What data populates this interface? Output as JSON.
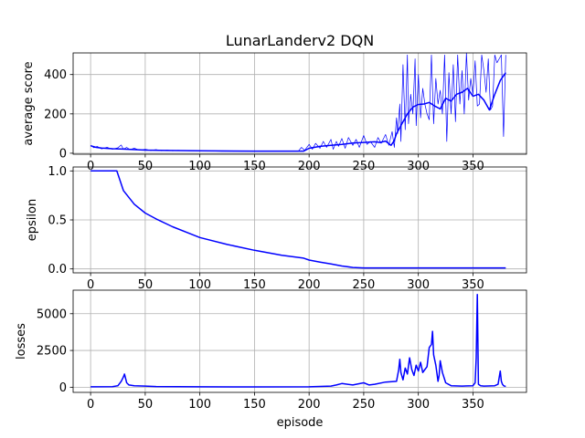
{
  "chart_data": [
    {
      "type": "line",
      "title": "LunarLanderv2 DQN",
      "xlabel": "",
      "ylabel": "average score",
      "xlim": [
        -16,
        399
      ],
      "ylim": [
        -5,
        510
      ],
      "xticks": [
        0,
        50,
        100,
        150,
        200,
        250,
        300,
        350
      ],
      "yticks": [
        0,
        200,
        400
      ],
      "grid": true,
      "series": [
        {
          "style": "thin",
          "color": "#0000ff",
          "x": [
            0,
            3,
            6,
            10,
            15,
            20,
            25,
            28,
            30,
            33,
            36,
            40,
            45,
            50,
            55,
            60,
            65,
            70,
            75,
            80,
            90,
            100,
            120,
            150,
            190,
            193,
            196,
            200,
            203,
            206,
            210,
            213,
            216,
            220,
            222,
            225,
            227,
            230,
            233,
            236,
            240,
            243,
            246,
            250,
            253,
            256,
            260,
            263,
            266,
            270,
            273,
            276,
            278,
            280,
            281,
            283,
            284,
            286,
            288,
            290,
            291,
            293,
            295,
            297,
            298,
            300,
            302,
            304,
            306,
            308,
            310,
            312,
            314,
            316,
            318,
            320,
            322,
            324,
            326,
            328,
            330,
            332,
            334,
            336,
            338,
            340,
            342,
            344,
            346,
            348,
            350,
            352,
            354,
            356,
            358,
            360,
            362,
            364,
            366,
            368,
            370,
            372,
            374,
            376,
            378,
            380
          ],
          "y": [
            40,
            28,
            35,
            22,
            30,
            20,
            28,
            42,
            20,
            30,
            18,
            25,
            15,
            20,
            14,
            18,
            12,
            16,
            12,
            15,
            12,
            12,
            10,
            10,
            10,
            30,
            15,
            45,
            20,
            50,
            25,
            60,
            30,
            70,
            20,
            60,
            35,
            75,
            25,
            80,
            40,
            70,
            30,
            90,
            45,
            60,
            30,
            80,
            50,
            95,
            40,
            110,
            30,
            180,
            100,
            250,
            60,
            450,
            120,
            500,
            150,
            300,
            200,
            480,
            140,
            400,
            180,
            330,
            250,
            200,
            170,
            500,
            150,
            380,
            250,
            320,
            200,
            500,
            60,
            410,
            200,
            450,
            160,
            500,
            250,
            420,
            200,
            510,
            270,
            380,
            300,
            470,
            240,
            250,
            500,
            420,
            310,
            480,
            220,
            240,
            500,
            460,
            480,
            500,
            85,
            500
          ]
        },
        {
          "style": "thick",
          "color": "#0000ff",
          "x": [
            0,
            5,
            10,
            20,
            30,
            50,
            70,
            100,
            150,
            195,
            200,
            210,
            220,
            230,
            240,
            250,
            260,
            265,
            270,
            275,
            278,
            280,
            285,
            290,
            295,
            300,
            305,
            310,
            315,
            320,
            325,
            330,
            335,
            340,
            345,
            350,
            355,
            360,
            365,
            370,
            375,
            380
          ],
          "y": [
            38,
            30,
            26,
            23,
            21,
            16,
            14,
            12,
            11,
            11,
            25,
            35,
            40,
            45,
            52,
            55,
            58,
            55,
            62,
            40,
            65,
            100,
            150,
            200,
            235,
            248,
            250,
            258,
            240,
            225,
            280,
            265,
            300,
            310,
            330,
            290,
            300,
            270,
            220,
            300,
            370,
            410
          ]
        }
      ]
    },
    {
      "type": "line",
      "title": "",
      "xlabel": "",
      "ylabel": "epsilon",
      "xlim": [
        -16,
        399
      ],
      "ylim": [
        -0.04,
        1.04
      ],
      "xticks": [
        0,
        50,
        100,
        150,
        200,
        250,
        300,
        350
      ],
      "yticks": [
        0.0,
        0.5,
        1.0
      ],
      "ytick_labels": [
        "0.0",
        "0.5",
        "1.0"
      ],
      "grid": true,
      "series": [
        {
          "style": "thick",
          "color": "#0000ff",
          "x": [
            0,
            10,
            24,
            30,
            40,
            50,
            60,
            75,
            100,
            125,
            150,
            175,
            195,
            200,
            210,
            220,
            230,
            240,
            250,
            260,
            300,
            350,
            380
          ],
          "y": [
            1.0,
            1.0,
            1.0,
            0.8,
            0.66,
            0.57,
            0.51,
            0.43,
            0.32,
            0.25,
            0.19,
            0.14,
            0.11,
            0.09,
            0.07,
            0.05,
            0.03,
            0.015,
            0.01,
            0.01,
            0.01,
            0.01,
            0.01
          ]
        }
      ]
    },
    {
      "type": "line",
      "title": "",
      "xlabel": "episode",
      "ylabel": "losses",
      "xlim": [
        -16,
        399
      ],
      "ylim": [
        -350,
        6600
      ],
      "xticks": [
        0,
        50,
        100,
        150,
        200,
        250,
        300,
        350
      ],
      "yticks": [
        0,
        2500,
        5000
      ],
      "grid": true,
      "series": [
        {
          "style": "thick",
          "color": "#0000ff",
          "x": [
            0,
            20,
            25,
            28,
            30,
            31,
            32,
            33,
            35,
            40,
            50,
            60,
            100,
            150,
            200,
            220,
            225,
            230,
            240,
            250,
            255,
            260,
            270,
            280,
            282,
            283,
            284,
            286,
            288,
            290,
            292,
            294,
            296,
            298,
            300,
            302,
            304,
            306,
            308,
            310,
            312,
            313,
            314,
            316,
            318,
            319,
            320,
            322,
            325,
            330,
            340,
            350,
            352,
            353,
            354,
            355,
            357,
            360,
            370,
            373,
            375,
            376,
            377,
            378,
            380
          ],
          "y": [
            30,
            40,
            100,
            400,
            700,
            900,
            600,
            300,
            150,
            100,
            80,
            50,
            30,
            20,
            30,
            80,
            150,
            250,
            150,
            300,
            150,
            200,
            350,
            400,
            1200,
            1900,
            1000,
            500,
            1300,
            900,
            2000,
            1200,
            800,
            1500,
            1100,
            1700,
            1000,
            1200,
            1400,
            2700,
            2900,
            3800,
            2200,
            1500,
            400,
            800,
            1800,
            1000,
            300,
            100,
            80,
            100,
            300,
            2000,
            6300,
            200,
            100,
            80,
            100,
            200,
            1100,
            400,
            200,
            100,
            50
          ]
        }
      ]
    }
  ]
}
